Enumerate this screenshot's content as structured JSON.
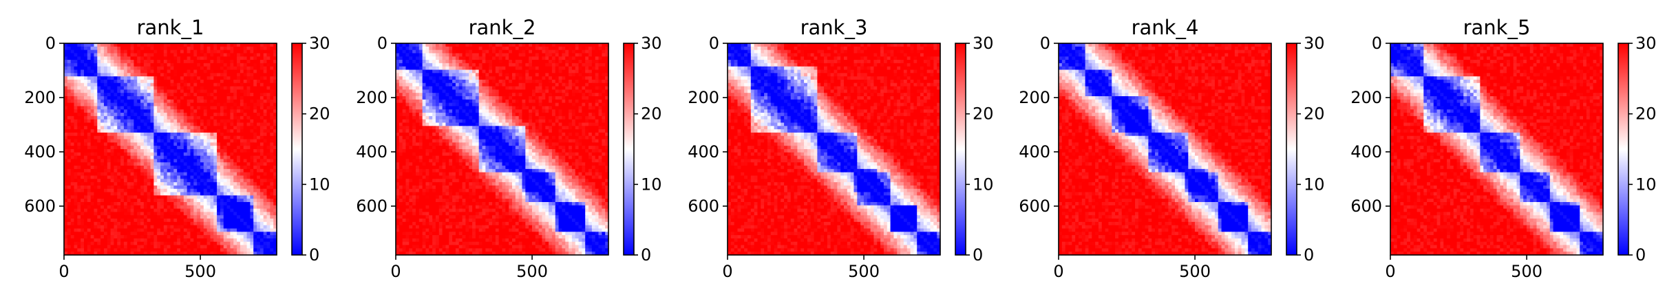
{
  "chart_data": [
    {
      "type": "heatmap",
      "title": "rank_1",
      "xlabel": "",
      "ylabel": "",
      "matrix_size": 780,
      "xlim": [
        0,
        780
      ],
      "ylim": [
        780,
        0
      ],
      "xticks": [
        0,
        500
      ],
      "yticks": [
        0,
        200,
        400,
        600
      ],
      "colorbar": {
        "range": [
          0,
          30
        ],
        "ticks": [
          0,
          10,
          20,
          30
        ],
        "colormap": "bwr"
      },
      "domains": [
        [
          0,
          120
        ],
        [
          120,
          330
        ],
        [
          330,
          560
        ],
        [
          560,
          690
        ],
        [
          690,
          780
        ]
      ],
      "hotspots": [
        [
          620,
          650
        ]
      ]
    },
    {
      "type": "heatmap",
      "title": "rank_2",
      "xlabel": "",
      "ylabel": "",
      "matrix_size": 780,
      "xlim": [
        0,
        780
      ],
      "ylim": [
        780,
        0
      ],
      "xticks": [
        0,
        500
      ],
      "yticks": [
        0,
        200,
        400,
        600
      ],
      "colorbar": {
        "range": [
          0,
          30
        ],
        "ticks": [
          0,
          10,
          20,
          30
        ],
        "colormap": "bwr"
      },
      "domains": [
        [
          0,
          100
        ],
        [
          100,
          300
        ],
        [
          300,
          480
        ],
        [
          480,
          580
        ],
        [
          580,
          690
        ],
        [
          690,
          780
        ]
      ],
      "hotspots": [
        [
          500,
          510
        ],
        [
          645,
          650
        ]
      ]
    },
    {
      "type": "heatmap",
      "title": "rank_3",
      "xlabel": "",
      "ylabel": "",
      "matrix_size": 780,
      "xlim": [
        0,
        780
      ],
      "ylim": [
        780,
        0
      ],
      "xticks": [
        0,
        500
      ],
      "yticks": [
        0,
        200,
        400,
        600
      ],
      "colorbar": {
        "range": [
          0,
          30
        ],
        "ticks": [
          0,
          10,
          20,
          30
        ],
        "colormap": "bwr"
      },
      "domains": [
        [
          0,
          90
        ],
        [
          90,
          330
        ],
        [
          330,
          480
        ],
        [
          480,
          600
        ],
        [
          600,
          700
        ],
        [
          700,
          780
        ]
      ],
      "hotspots": [
        [
          500,
          510
        ],
        [
          645,
          650
        ]
      ]
    },
    {
      "type": "heatmap",
      "title": "rank_4",
      "xlabel": "",
      "ylabel": "",
      "matrix_size": 780,
      "xlim": [
        0,
        780
      ],
      "ylim": [
        780,
        0
      ],
      "xticks": [
        0,
        500
      ],
      "yticks": [
        0,
        200,
        400,
        600
      ],
      "colorbar": {
        "range": [
          0,
          30
        ],
        "ticks": [
          0,
          10,
          20,
          30
        ],
        "colormap": "bwr"
      },
      "domains": [
        [
          0,
          100
        ],
        [
          100,
          200
        ],
        [
          200,
          330
        ],
        [
          330,
          480
        ],
        [
          480,
          580
        ],
        [
          580,
          700
        ],
        [
          700,
          780
        ]
      ],
      "hotspots": [
        [
          290,
          295
        ],
        [
          500,
          510
        ],
        [
          640,
          650
        ]
      ]
    },
    {
      "type": "heatmap",
      "title": "rank_5",
      "xlabel": "",
      "ylabel": "",
      "matrix_size": 780,
      "xlim": [
        0,
        780
      ],
      "ylim": [
        780,
        0
      ],
      "xticks": [
        0,
        500
      ],
      "yticks": [
        0,
        200,
        400,
        600
      ],
      "colorbar": {
        "range": [
          0,
          30
        ],
        "ticks": [
          0,
          10,
          20,
          30
        ],
        "colormap": "bwr"
      },
      "domains": [
        [
          0,
          120
        ],
        [
          120,
          330
        ],
        [
          330,
          480
        ],
        [
          480,
          580
        ],
        [
          580,
          700
        ],
        [
          700,
          780
        ]
      ],
      "hotspots": [
        [
          640,
          650
        ]
      ]
    }
  ]
}
